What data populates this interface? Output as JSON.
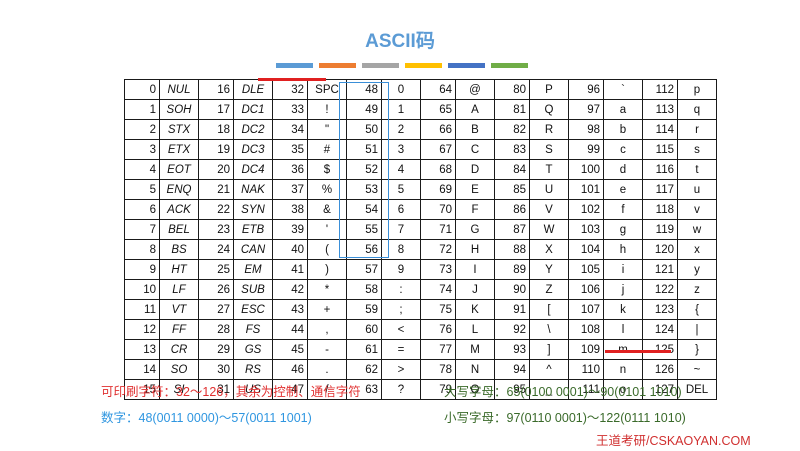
{
  "title": "ASCII码",
  "deco_colors": [
    "#5b9bd5",
    "#ed7d31",
    "#a5a5a5",
    "#ffc000",
    "#4472c4",
    "#70ad47"
  ],
  "columns": [
    [
      [
        0,
        "NUL"
      ],
      [
        1,
        "SOH"
      ],
      [
        2,
        "STX"
      ],
      [
        3,
        "ETX"
      ],
      [
        4,
        "EOT"
      ],
      [
        5,
        "ENQ"
      ],
      [
        6,
        "ACK"
      ],
      [
        7,
        "BEL"
      ],
      [
        8,
        "BS"
      ],
      [
        9,
        "HT"
      ],
      [
        10,
        "LF"
      ],
      [
        11,
        "VT"
      ],
      [
        12,
        "FF"
      ],
      [
        13,
        "CR"
      ],
      [
        14,
        "SO"
      ],
      [
        15,
        "SI"
      ]
    ],
    [
      [
        16,
        "DLE"
      ],
      [
        17,
        "DC1"
      ],
      [
        18,
        "DC2"
      ],
      [
        19,
        "DC3"
      ],
      [
        20,
        "DC4"
      ],
      [
        21,
        "NAK"
      ],
      [
        22,
        "SYN"
      ],
      [
        23,
        "ETB"
      ],
      [
        24,
        "CAN"
      ],
      [
        25,
        "EM"
      ],
      [
        26,
        "SUB"
      ],
      [
        27,
        "ESC"
      ],
      [
        28,
        "FS"
      ],
      [
        29,
        "GS"
      ],
      [
        30,
        "RS"
      ],
      [
        31,
        "US"
      ]
    ],
    [
      [
        32,
        "SPC"
      ],
      [
        33,
        "!"
      ],
      [
        34,
        "\""
      ],
      [
        35,
        "#"
      ],
      [
        36,
        "$"
      ],
      [
        37,
        "%"
      ],
      [
        38,
        "&"
      ],
      [
        39,
        "'"
      ],
      [
        40,
        "("
      ],
      [
        41,
        ")"
      ],
      [
        42,
        "*"
      ],
      [
        43,
        "+"
      ],
      [
        44,
        ","
      ],
      [
        45,
        "-"
      ],
      [
        46,
        "."
      ],
      [
        47,
        "/"
      ]
    ],
    [
      [
        48,
        "0"
      ],
      [
        49,
        "1"
      ],
      [
        50,
        "2"
      ],
      [
        51,
        "3"
      ],
      [
        52,
        "4"
      ],
      [
        53,
        "5"
      ],
      [
        54,
        "6"
      ],
      [
        55,
        "7"
      ],
      [
        56,
        "8"
      ],
      [
        57,
        "9"
      ],
      [
        58,
        ":"
      ],
      [
        59,
        ";"
      ],
      [
        60,
        "<"
      ],
      [
        61,
        "="
      ],
      [
        62,
        ">"
      ],
      [
        63,
        "?"
      ]
    ],
    [
      [
        64,
        "@"
      ],
      [
        65,
        "A"
      ],
      [
        66,
        "B"
      ],
      [
        67,
        "C"
      ],
      [
        68,
        "D"
      ],
      [
        69,
        "E"
      ],
      [
        70,
        "F"
      ],
      [
        71,
        "G"
      ],
      [
        72,
        "H"
      ],
      [
        73,
        "I"
      ],
      [
        74,
        "J"
      ],
      [
        75,
        "K"
      ],
      [
        76,
        "L"
      ],
      [
        77,
        "M"
      ],
      [
        78,
        "N"
      ],
      [
        79,
        "O"
      ]
    ],
    [
      [
        80,
        "P"
      ],
      [
        81,
        "Q"
      ],
      [
        82,
        "R"
      ],
      [
        83,
        "S"
      ],
      [
        84,
        "T"
      ],
      [
        85,
        "U"
      ],
      [
        86,
        "V"
      ],
      [
        87,
        "W"
      ],
      [
        88,
        "X"
      ],
      [
        89,
        "Y"
      ],
      [
        90,
        "Z"
      ],
      [
        91,
        "["
      ],
      [
        92,
        "\\"
      ],
      [
        93,
        "]"
      ],
      [
        94,
        "^"
      ],
      [
        95,
        "_"
      ]
    ],
    [
      [
        96,
        "`"
      ],
      [
        97,
        "a"
      ],
      [
        98,
        "b"
      ],
      [
        99,
        "c"
      ],
      [
        100,
        "d"
      ],
      [
        101,
        "e"
      ],
      [
        102,
        "f"
      ],
      [
        103,
        "g"
      ],
      [
        104,
        "h"
      ],
      [
        105,
        "i"
      ],
      [
        106,
        "j"
      ],
      [
        107,
        "k"
      ],
      [
        108,
        "l"
      ],
      [
        109,
        "m"
      ],
      [
        110,
        "n"
      ],
      [
        111,
        "o"
      ]
    ],
    [
      [
        112,
        "p"
      ],
      [
        113,
        "q"
      ],
      [
        114,
        "r"
      ],
      [
        115,
        "s"
      ],
      [
        116,
        "t"
      ],
      [
        117,
        "u"
      ],
      [
        118,
        "v"
      ],
      [
        119,
        "w"
      ],
      [
        120,
        "x"
      ],
      [
        121,
        "y"
      ],
      [
        122,
        "z"
      ],
      [
        123,
        "{"
      ],
      [
        124,
        "|"
      ],
      [
        125,
        "}"
      ],
      [
        126,
        "~"
      ],
      [
        127,
        "DEL"
      ]
    ]
  ],
  "notes": {
    "printable": "可印刷字符：32～126，其余为控制、通信字符",
    "digits": "数字：48(0011 0000)～57(0011 1001)",
    "upper": "大写字母：65(0100 0001)～90(0101 1010)",
    "lower": "小写字母：97(0110 0001)～122(0111 1010)"
  },
  "brand": "王道考研/CSKAOYAN.COM"
}
